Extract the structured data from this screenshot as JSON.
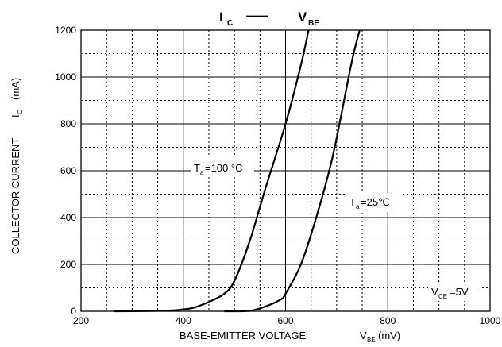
{
  "chart_data": {
    "type": "line",
    "title": {
      "main": "I",
      "main_sub": "C",
      "dash": "——",
      "right": "V",
      "right_sub": "BE"
    },
    "xlabel": {
      "text": "BASE-EMITTER VOLTAGE",
      "symbol": "V",
      "symbol_sub": "BE",
      "unit": "(mV)"
    },
    "ylabel": {
      "text": "COLLECTOR CURRENT",
      "symbol": "I",
      "symbol_sub": "C",
      "unit": "(mA)"
    },
    "xlim": [
      200,
      1000
    ],
    "ylim": [
      0,
      1200
    ],
    "x_ticks": [
      "200",
      "400",
      "600",
      "800",
      "1000"
    ],
    "y_ticks": [
      "0",
      "200",
      "400",
      "600",
      "800",
      "1000",
      "1200"
    ],
    "grid": true,
    "series": [
      {
        "name": "Ta=100 °C",
        "x": [
          265,
          330,
          380,
          400,
          420,
          450,
          480,
          500,
          530,
          560,
          600,
          630,
          645
        ],
        "y": [
          0,
          1,
          4,
          8,
          15,
          40,
          75,
          130,
          300,
          520,
          800,
          1050,
          1200
        ]
      },
      {
        "name": "Ta=25℃",
        "x": [
          480,
          530,
          560,
          590,
          600,
          630,
          660,
          690,
          710,
          730,
          745
        ],
        "y": [
          0,
          2,
          20,
          50,
          75,
          200,
          400,
          640,
          850,
          1070,
          1200
        ]
      }
    ],
    "annotations": [
      {
        "main": "T",
        "sub": "a",
        "text": "=100 °C"
      },
      {
        "main": "T",
        "sub": "a",
        "text": "=25℃"
      },
      {
        "main": "V",
        "sub": "CE",
        "text": "=5V"
      }
    ]
  }
}
